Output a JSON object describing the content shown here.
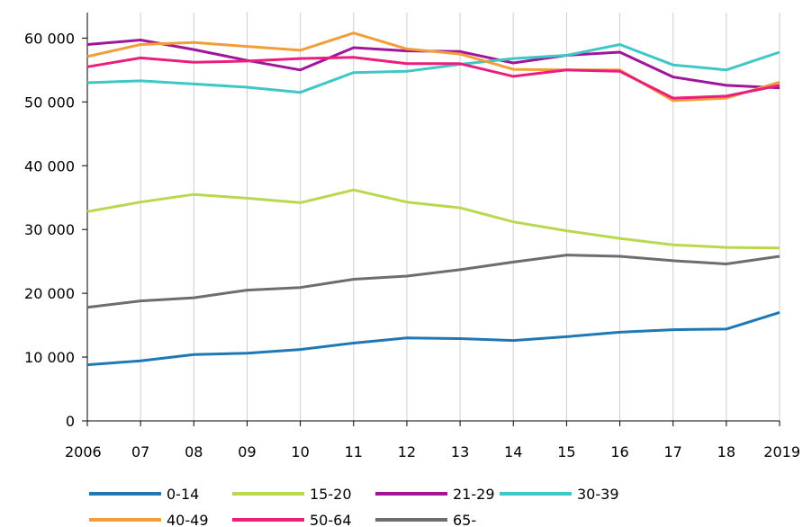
{
  "chart_data": {
    "type": "line",
    "x": [
      "2006",
      "07",
      "08",
      "09",
      "10",
      "11",
      "12",
      "13",
      "14",
      "15",
      "16",
      "17",
      "18",
      "2019"
    ],
    "yticks": [
      0,
      10000,
      20000,
      30000,
      40000,
      50000,
      60000
    ],
    "ytick_labels": [
      "0",
      "10 000",
      "20 000",
      "30 000",
      "40 000",
      "50 000",
      "60 000"
    ],
    "ylim": [
      0,
      64000
    ],
    "grid": "vertical",
    "legend_position": "bottom",
    "series": [
      {
        "name": "0-14",
        "color": "#1f77b4",
        "values": [
          8800,
          9400,
          10400,
          10600,
          11200,
          12200,
          13000,
          12900,
          12600,
          13200,
          13900,
          14300,
          14400,
          17000
        ]
      },
      {
        "name": "15-20",
        "color": "#b9d84f",
        "values": [
          32800,
          34300,
          35500,
          34900,
          34200,
          36200,
          34300,
          33400,
          31200,
          29800,
          28600,
          27600,
          27200,
          27100
        ]
      },
      {
        "name": "21-29",
        "color": "#a0169b",
        "values": [
          59000,
          59700,
          58200,
          56500,
          55000,
          58500,
          58000,
          57900,
          56100,
          57300,
          57800,
          53900,
          52600,
          52200
        ]
      },
      {
        "name": "30-39",
        "color": "#3fc6c6",
        "values": [
          53000,
          53300,
          52800,
          52300,
          51500,
          54600,
          54800,
          55900,
          56800,
          57300,
          59000,
          55800,
          55000,
          57800
        ]
      },
      {
        "name": "40-49",
        "color": "#f29d38",
        "values": [
          57100,
          59000,
          59300,
          58700,
          58100,
          60800,
          58300,
          57500,
          55100,
          55000,
          55000,
          50200,
          50600,
          53100
        ]
      },
      {
        "name": "50-64",
        "color": "#e91e7d",
        "values": [
          55500,
          56900,
          56200,
          56400,
          56800,
          57000,
          56000,
          56000,
          54000,
          55000,
          54800,
          50600,
          50900,
          52600
        ]
      },
      {
        "name": "65-",
        "color": "#6d6d6d",
        "values": [
          17800,
          18800,
          19300,
          20500,
          20900,
          22200,
          22700,
          23700,
          24900,
          26000,
          25800,
          25100,
          24600,
          25800
        ]
      }
    ]
  }
}
